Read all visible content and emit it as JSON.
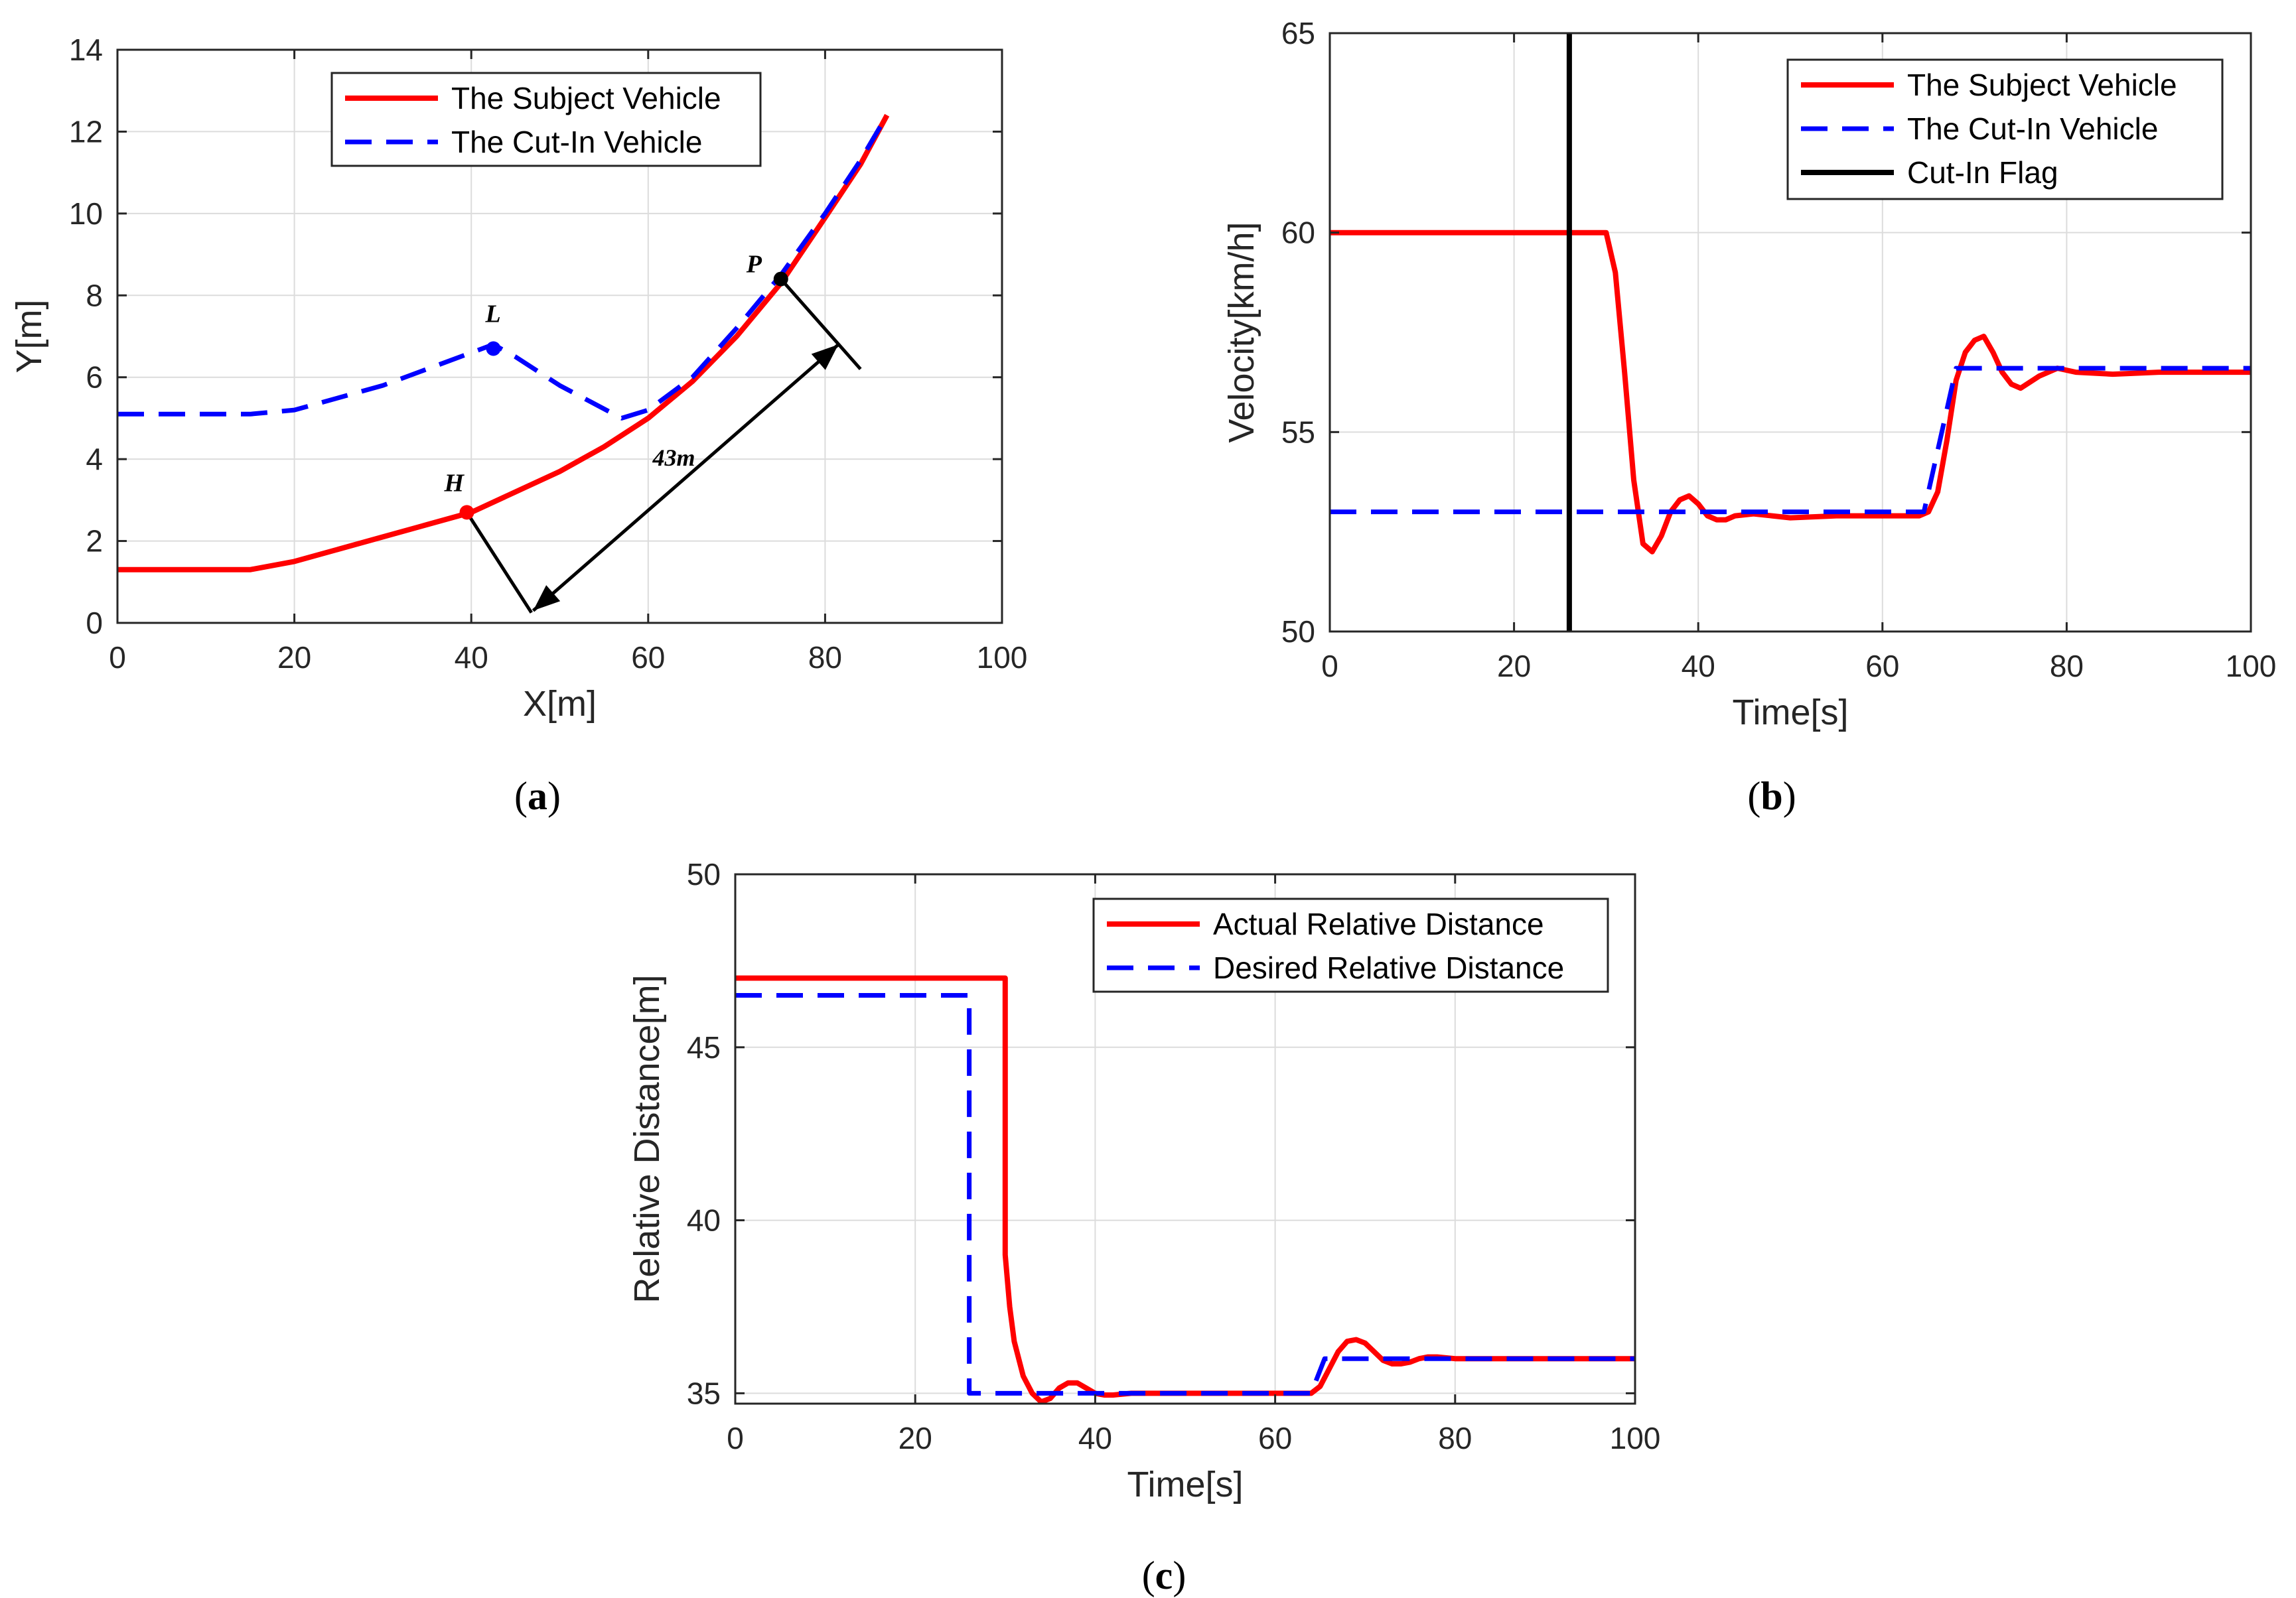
{
  "chart_data": [
    {
      "id": "a",
      "type": "line",
      "caption": "a",
      "xlabel": "X[m]",
      "ylabel": "Y[m]",
      "xlim": [
        0,
        100
      ],
      "ylim": [
        0,
        14
      ],
      "xticks": [
        0,
        20,
        40,
        60,
        80,
        100
      ],
      "yticks": [
        0,
        2,
        4,
        6,
        8,
        10,
        12,
        14
      ],
      "grid": true,
      "legend_position": "top-center",
      "series": [
        {
          "name": "The Subject Vehicle",
          "color": "#ff0000",
          "style": "solid",
          "x": [
            0,
            15,
            20,
            25,
            30,
            35,
            40,
            45,
            50,
            55,
            60,
            65,
            70,
            75,
            80,
            84,
            87
          ],
          "y": [
            1.3,
            1.3,
            1.5,
            1.8,
            2.1,
            2.4,
            2.7,
            3.2,
            3.7,
            4.3,
            5.0,
            5.9,
            7.0,
            8.3,
            9.9,
            11.2,
            12.4
          ]
        },
        {
          "name": "The Cut-In Vehicle",
          "color": "#0000ff",
          "style": "dashed",
          "x": [
            0,
            15,
            20,
            25,
            30,
            35,
            40,
            42.5,
            45,
            50,
            57,
            60,
            65,
            70,
            75,
            80,
            84,
            87
          ],
          "y": [
            5.1,
            5.1,
            5.2,
            5.5,
            5.8,
            6.2,
            6.6,
            6.8,
            6.5,
            5.8,
            5.0,
            5.2,
            6.0,
            7.2,
            8.5,
            10.0,
            11.3,
            12.4
          ]
        }
      ],
      "markers": [
        {
          "label": "L",
          "x": 42.5,
          "y": 6.7,
          "color": "#0000ff"
        },
        {
          "label": "H",
          "x": 39.5,
          "y": 2.7,
          "color": "#ff0000"
        },
        {
          "label": "P",
          "x": 75,
          "y": 8.4,
          "color": "#000000"
        }
      ],
      "dimension_annotation": {
        "label": "43m",
        "from": {
          "x": 47,
          "y": 0.3
        },
        "to": {
          "x": 81.5,
          "y": 6.8
        }
      },
      "dimension_guides": [
        {
          "from": {
            "x": 39.5,
            "y": 2.7
          },
          "to": {
            "x": 46.8,
            "y": 0.25
          }
        },
        {
          "from": {
            "x": 75,
            "y": 8.4
          },
          "to": {
            "x": 84,
            "y": 6.2
          }
        }
      ]
    },
    {
      "id": "b",
      "type": "line",
      "caption": "b",
      "xlabel": "Time[s]",
      "ylabel": "Velocity[km/h]",
      "xlim": [
        0,
        100
      ],
      "ylim": [
        50,
        65
      ],
      "xticks": [
        0,
        20,
        40,
        60,
        80,
        100
      ],
      "yticks": [
        50,
        55,
        60,
        65
      ],
      "grid": true,
      "legend_position": "top-right",
      "series": [
        {
          "name": "The Subject Vehicle",
          "color": "#ff0000",
          "style": "solid",
          "x": [
            0,
            29,
            30,
            31,
            32,
            33,
            34,
            35,
            36,
            37,
            38,
            39,
            40,
            41,
            42,
            43,
            44,
            46,
            48,
            50,
            55,
            60,
            64,
            65,
            66,
            67,
            68,
            69,
            70,
            71,
            72,
            73,
            74,
            75,
            77,
            79,
            81,
            85,
            90,
            100
          ],
          "y": [
            60,
            60,
            60,
            59,
            56.5,
            53.8,
            52.2,
            52.0,
            52.4,
            53.0,
            53.3,
            53.4,
            53.2,
            52.9,
            52.8,
            52.8,
            52.9,
            52.95,
            52.9,
            52.85,
            52.9,
            52.9,
            52.9,
            53.0,
            53.5,
            54.8,
            56.3,
            57.0,
            57.3,
            57.4,
            57.0,
            56.5,
            56.2,
            56.1,
            56.4,
            56.6,
            56.5,
            56.45,
            56.5,
            56.5
          ]
        },
        {
          "name": "The Cut-In Vehicle",
          "color": "#0000ff",
          "style": "dashed",
          "x": [
            0,
            64.5,
            68,
            100
          ],
          "y": [
            53,
            53,
            56.6,
            56.6
          ]
        },
        {
          "name": "Cut-In Flag",
          "color": "#000000",
          "style": "solid",
          "x": [
            26,
            26
          ],
          "y": [
            50,
            65
          ]
        }
      ]
    },
    {
      "id": "c",
      "type": "line",
      "caption": "c",
      "xlabel": "Time[s]",
      "ylabel": "Relative Distance[m]",
      "xlim": [
        0,
        100
      ],
      "ylim": [
        34.7,
        50
      ],
      "xticks": [
        0,
        20,
        40,
        60,
        80,
        100
      ],
      "yticks": [
        35,
        40,
        45,
        50
      ],
      "grid": true,
      "legend_position": "top-right",
      "series": [
        {
          "name": "Actual Relative Distance",
          "color": "#ff0000",
          "style": "solid",
          "x": [
            0,
            30,
            30,
            30.5,
            31,
            32,
            33,
            34,
            35,
            36,
            37,
            38,
            39,
            40,
            41,
            42,
            44,
            46,
            50,
            55,
            60,
            63,
            64,
            65,
            66,
            67,
            68,
            69,
            70,
            71,
            72,
            73,
            74,
            75,
            76,
            77,
            78,
            80,
            85,
            90,
            100
          ],
          "y": [
            47,
            47,
            39,
            37.5,
            36.5,
            35.5,
            35.0,
            34.75,
            34.85,
            35.15,
            35.3,
            35.3,
            35.15,
            35.0,
            34.95,
            34.95,
            35.0,
            35.0,
            35.0,
            35.0,
            35.0,
            35.0,
            35.0,
            35.2,
            35.7,
            36.2,
            36.5,
            36.55,
            36.45,
            36.2,
            35.95,
            35.85,
            35.85,
            35.9,
            36.0,
            36.05,
            36.05,
            36.0,
            36.0,
            36.0,
            36.0
          ]
        },
        {
          "name": "Desired Relative Distance",
          "color": "#0000ff",
          "style": "dashed",
          "x": [
            0,
            26,
            26,
            64,
            65.5,
            100
          ],
          "y": [
            46.5,
            46.5,
            35,
            35,
            36,
            36
          ]
        }
      ]
    }
  ]
}
